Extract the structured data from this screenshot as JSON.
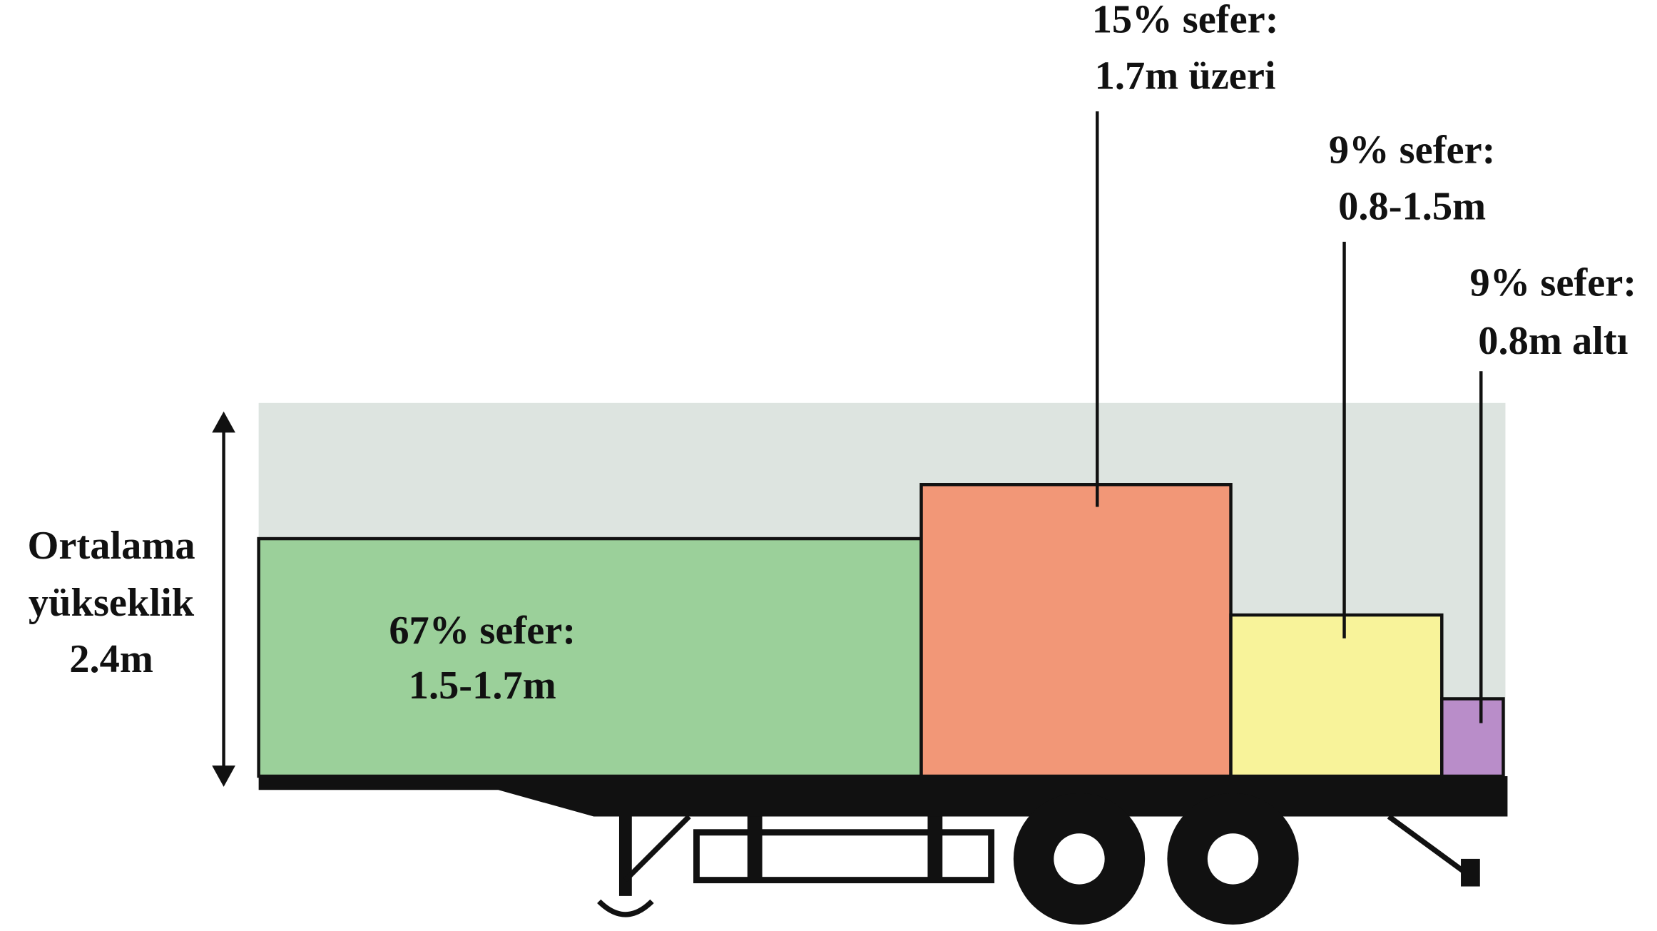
{
  "side_label": {
    "lines": [
      "Ortalama",
      "yükseklik",
      "2.4m"
    ]
  },
  "segments": [
    {
      "lines": [
        "67% sefer:",
        "1.5-1.7m"
      ]
    },
    {
      "lines": [
        "15% sefer:",
        "1.7m üzeri"
      ]
    },
    {
      "lines": [
        "9% sefer:",
        "0.8-1.5m"
      ]
    },
    {
      "lines": [
        "9% sefer:",
        "0.8m altı"
      ]
    }
  ]
}
